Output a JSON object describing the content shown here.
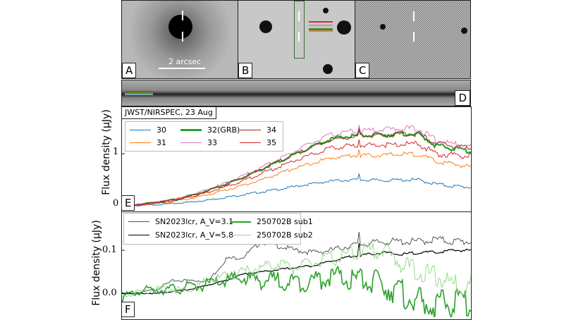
{
  "panels": {
    "a": "A",
    "b": "B",
    "c": "C",
    "d": "D",
    "e": "E",
    "f": "F"
  },
  "scale_bar": "2 arcsec",
  "chart_data": [
    {
      "type": "line",
      "panel": "E",
      "title": "JWST/NIRSPEC, 23 Aug",
      "ylabel": "Flux density (μJy)",
      "xlabel": "",
      "ylim": [
        -0.1,
        1.9
      ],
      "yticks": [
        "0",
        "1"
      ],
      "ytick_values": [
        0,
        1
      ],
      "x": [
        0,
        0.05,
        0.1,
        0.15,
        0.2,
        0.25,
        0.3,
        0.35,
        0.4,
        0.45,
        0.5,
        0.55,
        0.6,
        0.65,
        0.7,
        0.75,
        0.8,
        0.85,
        0.9,
        0.95,
        1.0
      ],
      "series": [
        {
          "name": "30",
          "color": "#1f77b4",
          "values": [
            0,
            0.01,
            0.03,
            0.05,
            0.08,
            0.12,
            0.17,
            0.22,
            0.27,
            0.32,
            0.38,
            0.43,
            0.48,
            0.5,
            0.5,
            0.49,
            0.5,
            0.5,
            0.42,
            0.38,
            0.36
          ]
        },
        {
          "name": "31",
          "color": "#ff7f0e",
          "values": [
            0,
            0.02,
            0.05,
            0.09,
            0.15,
            0.22,
            0.31,
            0.4,
            0.5,
            0.62,
            0.73,
            0.83,
            0.92,
            0.96,
            0.97,
            0.97,
            0.99,
            0.99,
            0.85,
            0.8,
            0.75
          ]
        },
        {
          "name": "32(GRB)",
          "color": "#2ca02c",
          "values": [
            0,
            0.03,
            0.07,
            0.12,
            0.2,
            0.3,
            0.42,
            0.55,
            0.7,
            0.85,
            1.0,
            1.15,
            1.28,
            1.33,
            1.35,
            1.36,
            1.38,
            1.38,
            1.15,
            1.1,
            1.05
          ]
        },
        {
          "name": "33",
          "color": "#e377c2",
          "values": [
            0,
            0.03,
            0.07,
            0.13,
            0.21,
            0.32,
            0.44,
            0.58,
            0.74,
            0.9,
            1.06,
            1.22,
            1.36,
            1.42,
            1.44,
            1.46,
            1.48,
            1.48,
            1.25,
            1.18,
            1.14
          ]
        },
        {
          "name": "34",
          "color": "#8c2d19",
          "values": [
            0,
            0.03,
            0.07,
            0.12,
            0.2,
            0.3,
            0.42,
            0.55,
            0.7,
            0.85,
            1.0,
            1.14,
            1.26,
            1.31,
            1.34,
            1.35,
            1.37,
            1.37,
            1.2,
            1.15,
            1.12
          ]
        },
        {
          "name": "35",
          "color": "#d62728",
          "values": [
            0,
            0.03,
            0.06,
            0.11,
            0.18,
            0.27,
            0.37,
            0.49,
            0.62,
            0.75,
            0.88,
            1.0,
            1.1,
            1.15,
            1.16,
            1.17,
            1.18,
            1.18,
            1.0,
            0.97,
            0.95
          ]
        }
      ],
      "spike_x": 0.68,
      "legend": "top-left"
    },
    {
      "type": "line",
      "panel": "F",
      "ylabel": "Flux density (μJy)",
      "xlabel": "",
      "ylim": [
        -0.055,
        0.19
      ],
      "yticks": [
        "0.0",
        "0.1"
      ],
      "ytick_values": [
        0,
        0.1
      ],
      "x": [
        0,
        0.05,
        0.1,
        0.15,
        0.2,
        0.25,
        0.3,
        0.35,
        0.4,
        0.45,
        0.5,
        0.55,
        0.6,
        0.65,
        0.7,
        0.75,
        0.8,
        0.85,
        0.9,
        0.95,
        1.0
      ],
      "series": [
        {
          "name": "SN2023lcr, A_V=3.1",
          "color": "#555555",
          "values": [
            0,
            0,
            0.01,
            0.03,
            0.03,
            0.03,
            0.08,
            0.085,
            0.12,
            0.11,
            0.1,
            0.095,
            0.1,
            0.11,
            0.115,
            0.12,
            0.12,
            0.12,
            0.125,
            0.12,
            0.12
          ]
        },
        {
          "name": "SN2023lcr, A_V=5.8",
          "color": "#000000",
          "values": [
            0,
            0,
            0,
            0.005,
            0.01,
            0.02,
            0.03,
            0.045,
            0.05,
            0.055,
            0.06,
            0.065,
            0.075,
            0.085,
            0.09,
            0.095,
            0.09,
            0.095,
            0.095,
            0.1,
            0.1
          ]
        },
        {
          "name": "250702B sub1",
          "color": "#2ca02c",
          "values": [
            -0.01,
            0.005,
            0.01,
            0.01,
            0.015,
            0.02,
            0.03,
            0.035,
            0.03,
            0.03,
            0.025,
            0.03,
            0.04,
            0.03,
            0.03,
            0.02,
            0,
            -0.02,
            -0.03,
            -0.02,
            -0.02
          ]
        },
        {
          "name": "250702B sub2",
          "color": "#98d98e",
          "values": [
            -0.01,
            0.005,
            0.01,
            0.01,
            0.01,
            0.03,
            0.04,
            0.05,
            0.06,
            0.07,
            0.06,
            0.07,
            0.08,
            0.09,
            0.1,
            0.1,
            0.07,
            0.05,
            0.04,
            0.02,
            0.02
          ]
        }
      ],
      "spike_x": 0.68,
      "legend": "top-left"
    }
  ]
}
